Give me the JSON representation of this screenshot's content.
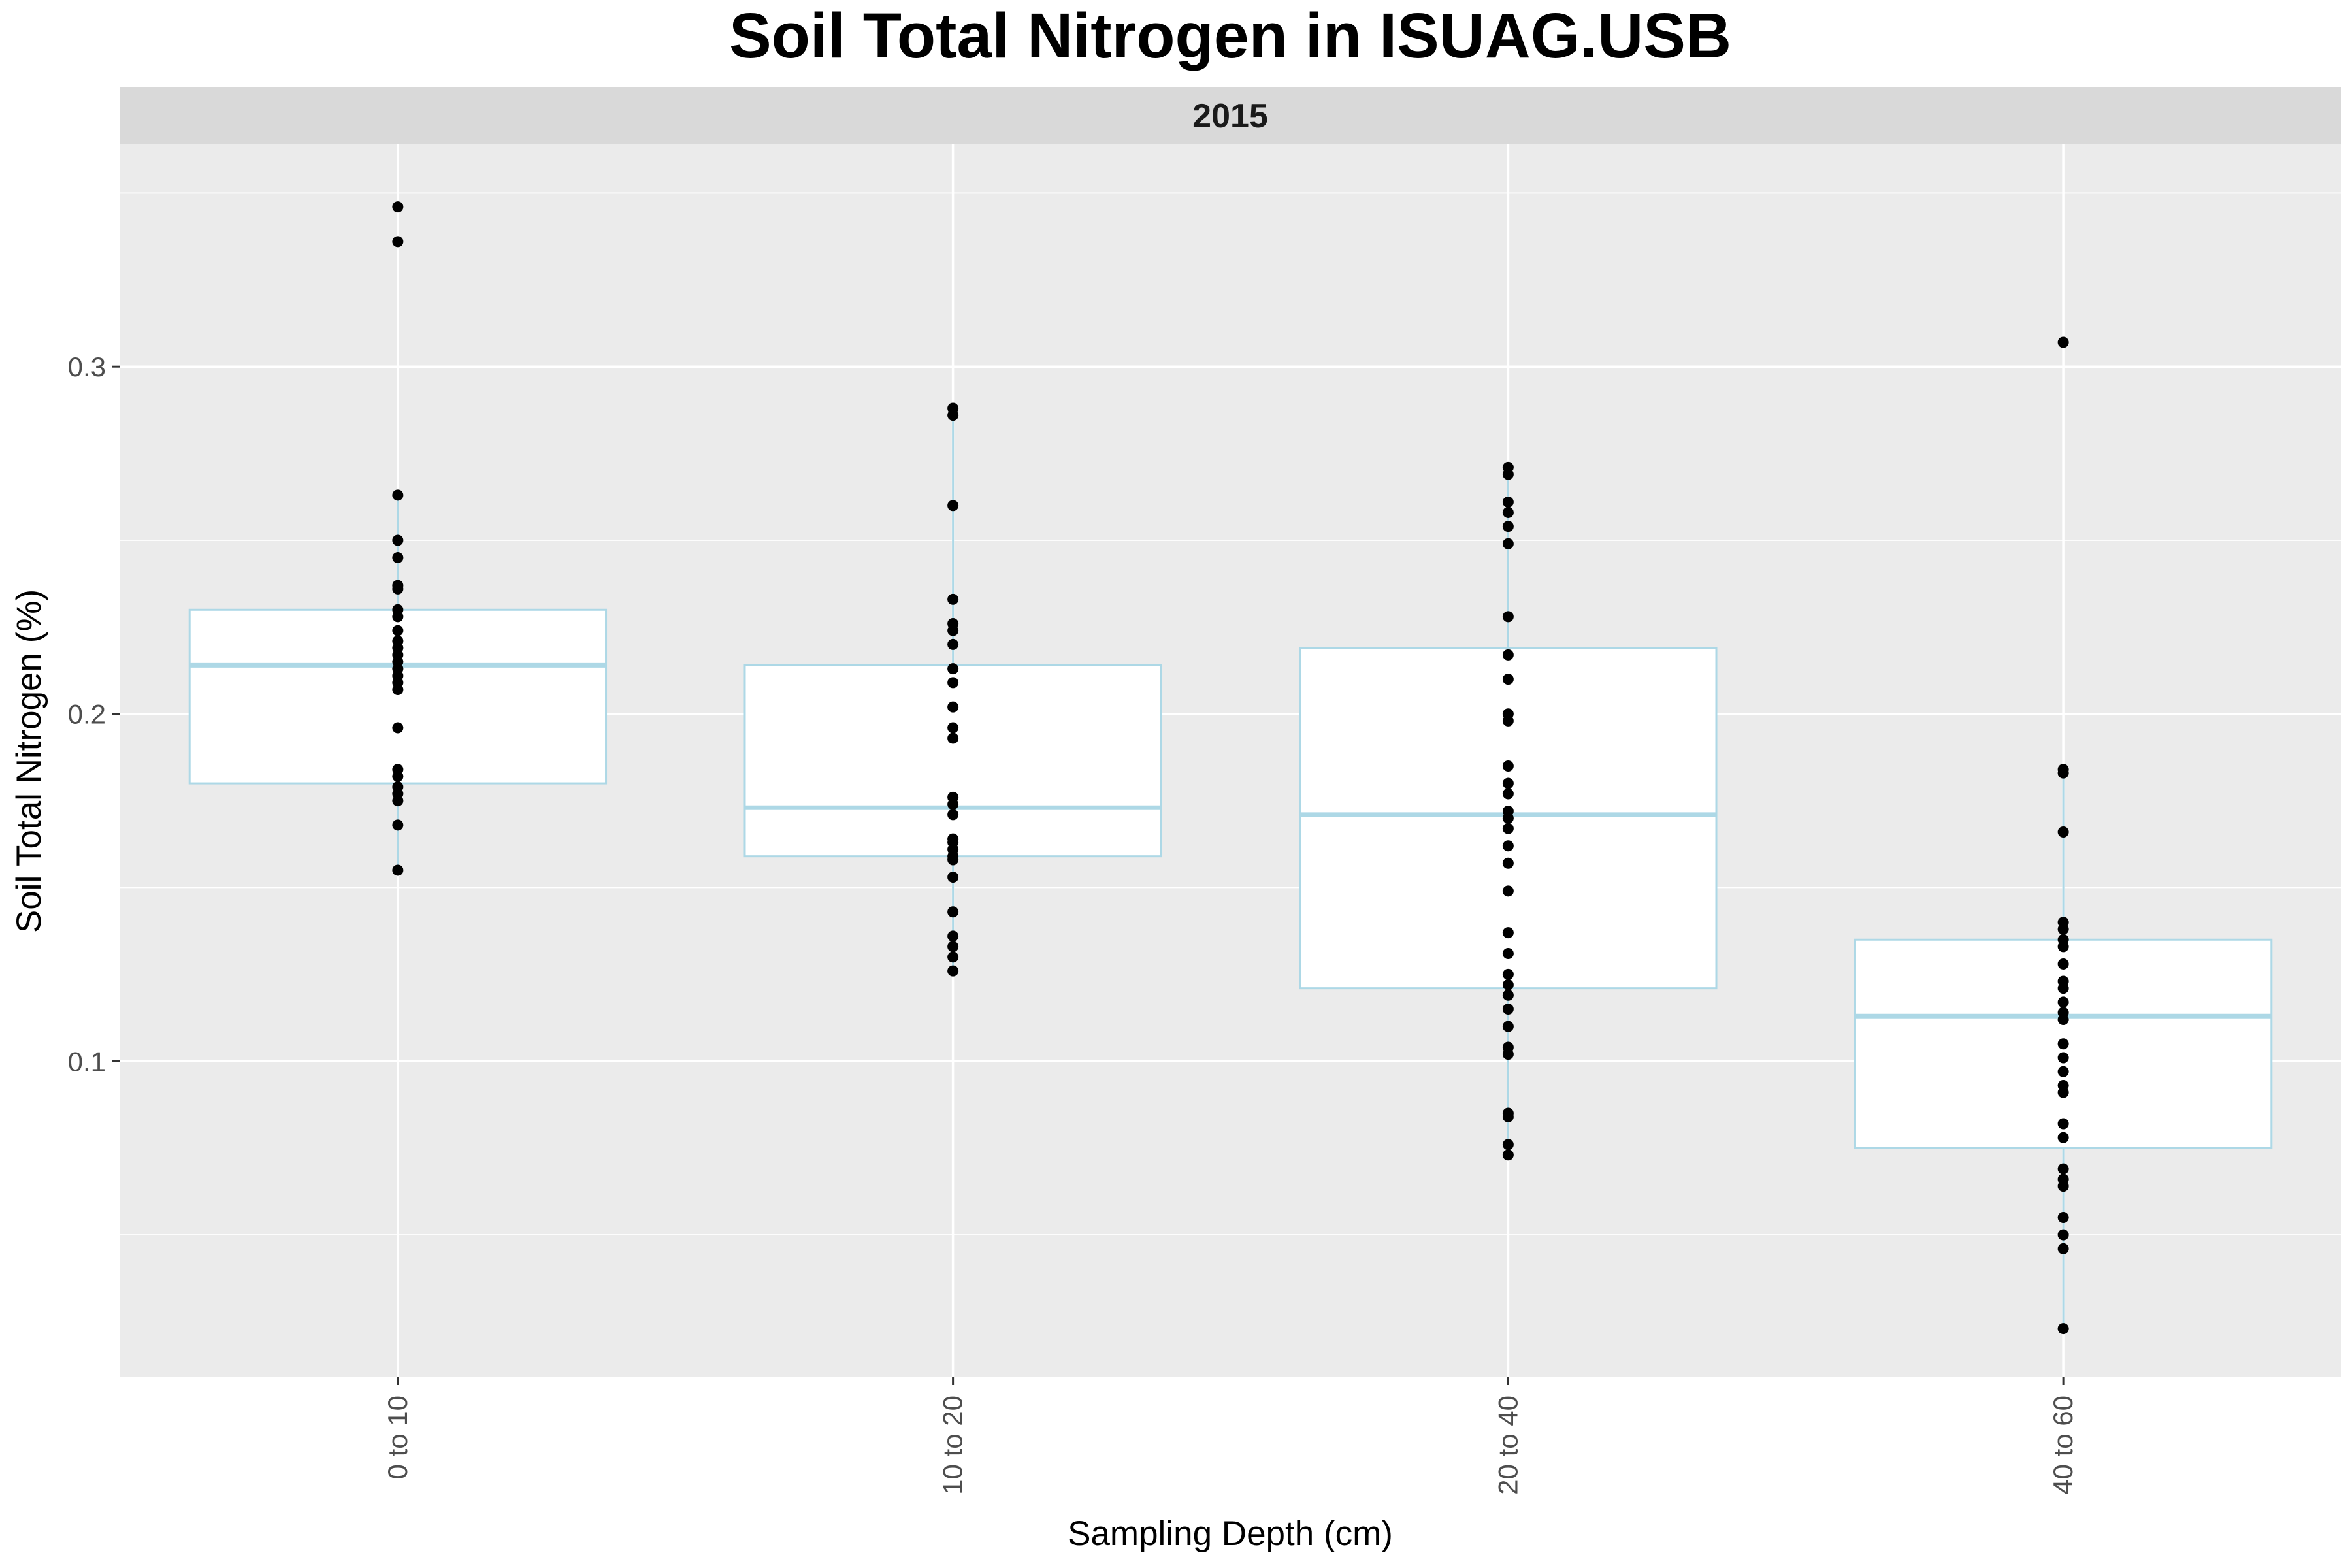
{
  "chart_data": {
    "type": "box",
    "title": "Soil Total Nitrogen in ISUAG.USB",
    "facet_label": "2015",
    "xlabel": "Sampling Depth (cm)",
    "ylabel": "Soil Total Nitrogen (%)",
    "categories": [
      "0 to 10",
      "10 to 20",
      "20 to 40",
      "40 to 60"
    ],
    "ylim": [
      0.009,
      0.364
    ],
    "yticks": [
      0.1,
      0.2,
      0.3
    ],
    "ytick_labels": [
      "0.1",
      "0.2",
      "0.3"
    ],
    "grid": true,
    "colors": {
      "panel_background": "#ebebeb",
      "strip_background": "#d9d9d9",
      "grid_line": "#ffffff",
      "box_fill": "#ffffff",
      "box_line": "#add8e6",
      "point": "#000000",
      "text": "#000000",
      "tick_text": "#4d4d4d"
    },
    "boxes": [
      {
        "category": "0 to 10",
        "lower_whisker": 0.155,
        "q1": 0.18,
        "median": 0.214,
        "q3": 0.23,
        "upper_whisker": 0.263
      },
      {
        "category": "10 to 20",
        "lower_whisker": 0.126,
        "q1": 0.159,
        "median": 0.173,
        "q3": 0.214,
        "upper_whisker": 0.288
      },
      {
        "category": "20 to 40",
        "lower_whisker": 0.073,
        "q1": 0.121,
        "median": 0.171,
        "q3": 0.219,
        "upper_whisker": 0.271
      },
      {
        "category": "40 to 60",
        "lower_whisker": 0.023,
        "q1": 0.075,
        "median": 0.113,
        "q3": 0.135,
        "upper_whisker": 0.184
      }
    ],
    "points": [
      {
        "category": "0 to 10",
        "values": [
          0.346,
          0.336,
          0.263,
          0.25,
          0.245,
          0.237,
          0.236,
          0.23,
          0.228,
          0.224,
          0.221,
          0.219,
          0.217,
          0.215,
          0.213,
          0.211,
          0.209,
          0.207,
          0.196,
          0.184,
          0.182,
          0.179,
          0.177,
          0.175,
          0.168,
          0.155
        ]
      },
      {
        "category": "10 to 20",
        "values": [
          0.288,
          0.286,
          0.26,
          0.233,
          0.226,
          0.224,
          0.22,
          0.213,
          0.209,
          0.202,
          0.196,
          0.193,
          0.176,
          0.174,
          0.171,
          0.164,
          0.163,
          0.161,
          0.159,
          0.158,
          0.153,
          0.143,
          0.136,
          0.133,
          0.13,
          0.126
        ]
      },
      {
        "category": "20 to 40",
        "values": [
          0.271,
          0.269,
          0.261,
          0.258,
          0.254,
          0.249,
          0.228,
          0.217,
          0.21,
          0.2,
          0.198,
          0.185,
          0.18,
          0.177,
          0.172,
          0.17,
          0.167,
          0.162,
          0.157,
          0.149,
          0.137,
          0.131,
          0.125,
          0.122,
          0.119,
          0.115,
          0.11,
          0.104,
          0.102,
          0.085,
          0.084,
          0.076,
          0.073
        ]
      },
      {
        "category": "40 to 60",
        "values": [
          0.307,
          0.184,
          0.183,
          0.166,
          0.14,
          0.138,
          0.135,
          0.133,
          0.128,
          0.123,
          0.121,
          0.117,
          0.114,
          0.112,
          0.105,
          0.101,
          0.097,
          0.093,
          0.091,
          0.082,
          0.078,
          0.069,
          0.066,
          0.064,
          0.055,
          0.05,
          0.046,
          0.023
        ]
      }
    ]
  }
}
